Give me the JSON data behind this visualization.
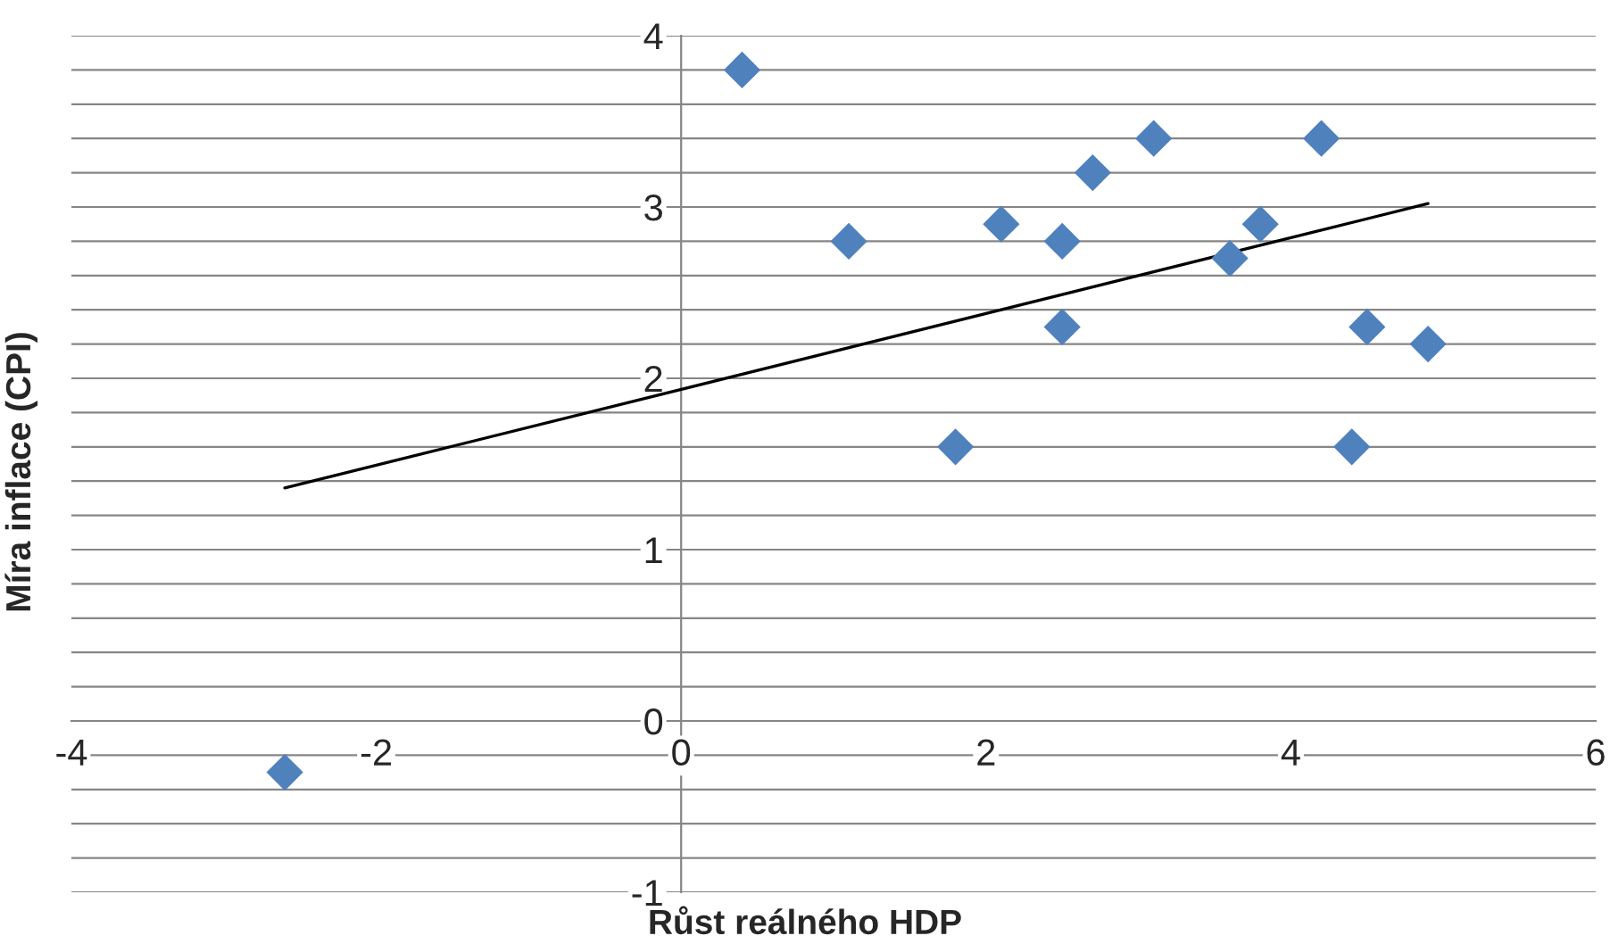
{
  "chart_data": {
    "type": "scatter",
    "xlabel": "Růst reálného HDP",
    "ylabel": "Míra inflace (CPI)",
    "x": [
      0.4,
      1.1,
      1.8,
      2.1,
      2.5,
      2.5,
      2.7,
      3.1,
      3.6,
      3.8,
      4.2,
      4.4,
      4.5,
      4.9,
      -2.6
    ],
    "series": [
      {
        "color": "#4f81bd",
        "marker": "diamond",
        "values": [
          3.8,
          2.8,
          1.6,
          2.9,
          2.8,
          2.3,
          3.2,
          3.4,
          2.7,
          2.9,
          3.4,
          1.6,
          2.3,
          2.2,
          -0.3
        ]
      },
      {
        "type": "line",
        "color": "#000000",
        "line_style": "solid",
        "x": [
          -2.6,
          4.9
        ],
        "values": [
          1.36,
          3.02
        ]
      }
    ],
    "xlim": [
      -4,
      6
    ],
    "xticks": [
      -4,
      -2,
      0,
      2,
      4,
      6
    ],
    "ylim": [
      -1,
      4
    ],
    "yticks": [
      {
        "value": -1,
        "label": "-1"
      },
      {
        "value": -0.8,
        "label": null
      },
      {
        "value": -0.6,
        "label": null
      },
      {
        "value": -0.4,
        "label": null
      },
      {
        "value": -0.2,
        "label": null
      },
      0,
      {
        "value": 0.2,
        "label": null
      },
      {
        "value": 0.4,
        "label": null
      },
      {
        "value": 0.6,
        "label": null
      },
      {
        "value": 0.8,
        "label": null
      },
      1,
      {
        "value": 1.2,
        "label": null
      },
      {
        "value": 1.4,
        "label": null
      },
      {
        "value": 1.6,
        "label": null
      },
      {
        "value": 1.8,
        "label": null
      },
      2,
      {
        "value": 2.2,
        "label": null
      },
      {
        "value": 2.4,
        "label": null
      },
      {
        "value": 2.6,
        "label": null
      },
      {
        "value": 2.8,
        "label": null
      },
      3,
      {
        "value": 3.2,
        "label": null
      },
      {
        "value": 3.4,
        "label": null
      },
      {
        "value": 3.6,
        "label": null
      },
      {
        "value": 3.8,
        "label": null
      },
      4
    ],
    "grid": "y",
    "legend": false
  }
}
